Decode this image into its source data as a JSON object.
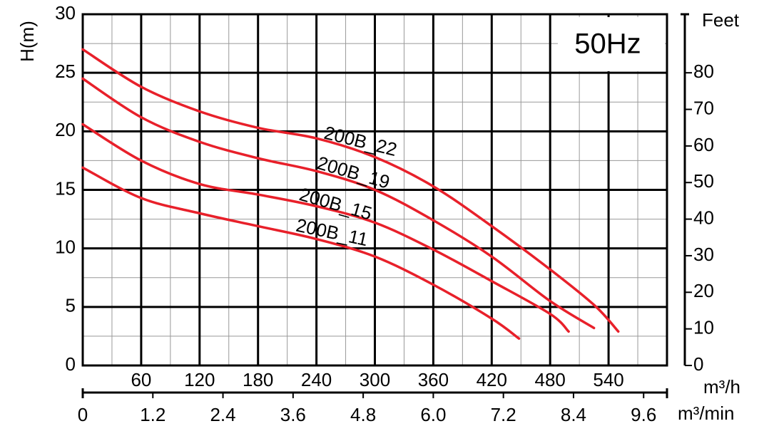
{
  "chart_data": {
    "type": "line",
    "title": "50Hz",
    "y_label": "H(m)",
    "y2_label": "Feet",
    "x_label": "m³/h",
    "x2_label": "m³/min",
    "xlim": [
      0,
      600
    ],
    "xticks": [
      60,
      120,
      180,
      240,
      300,
      360,
      420,
      480,
      540
    ],
    "x2lim": [
      0,
      10
    ],
    "x2ticks": [
      0,
      1.2,
      2.4,
      3.6,
      4.8,
      {
        "value": 6,
        "label": "6.0"
      },
      7.2,
      8.4,
      9.6
    ],
    "ylim": [
      0,
      30
    ],
    "yticks": [
      0,
      5,
      10,
      15,
      20,
      25,
      30
    ],
    "y2lim": [
      0,
      96
    ],
    "y2ticks": [
      0,
      10,
      20,
      30,
      40,
      50,
      60,
      70,
      80
    ],
    "grid": true,
    "title_color": "#1f6b9e",
    "series": [
      {
        "name": "200B_22",
        "color": "#e8202a",
        "x": [
          0,
          60,
          120,
          180,
          240,
          300,
          360,
          420,
          480,
          526,
          550
        ],
        "values": [
          27.0,
          23.8,
          21.7,
          20.3,
          19.4,
          17.8,
          15.3,
          11.9,
          8.2,
          5.1,
          2.9
        ]
      },
      {
        "name": "200B_19",
        "color": "#e8202a",
        "x": [
          0,
          60,
          120,
          180,
          240,
          300,
          360,
          420,
          480,
          525
        ],
        "values": [
          24.5,
          21.2,
          19.1,
          17.7,
          16.6,
          15.0,
          12.4,
          9.3,
          5.5,
          3.2
        ]
      },
      {
        "name": "200B_15",
        "color": "#e8202a",
        "x": [
          0,
          60,
          120,
          180,
          240,
          300,
          360,
          420,
          480,
          499
        ],
        "values": [
          20.6,
          17.5,
          15.5,
          14.6,
          13.6,
          12.2,
          9.9,
          7.2,
          4.4,
          2.9
        ]
      },
      {
        "name": "200B_11",
        "color": "#e8202a",
        "x": [
          0,
          60,
          120,
          180,
          240,
          300,
          360,
          420,
          448
        ],
        "values": [
          16.9,
          14.3,
          13.0,
          11.9,
          10.8,
          9.3,
          6.9,
          4.0,
          2.3
        ]
      }
    ]
  }
}
